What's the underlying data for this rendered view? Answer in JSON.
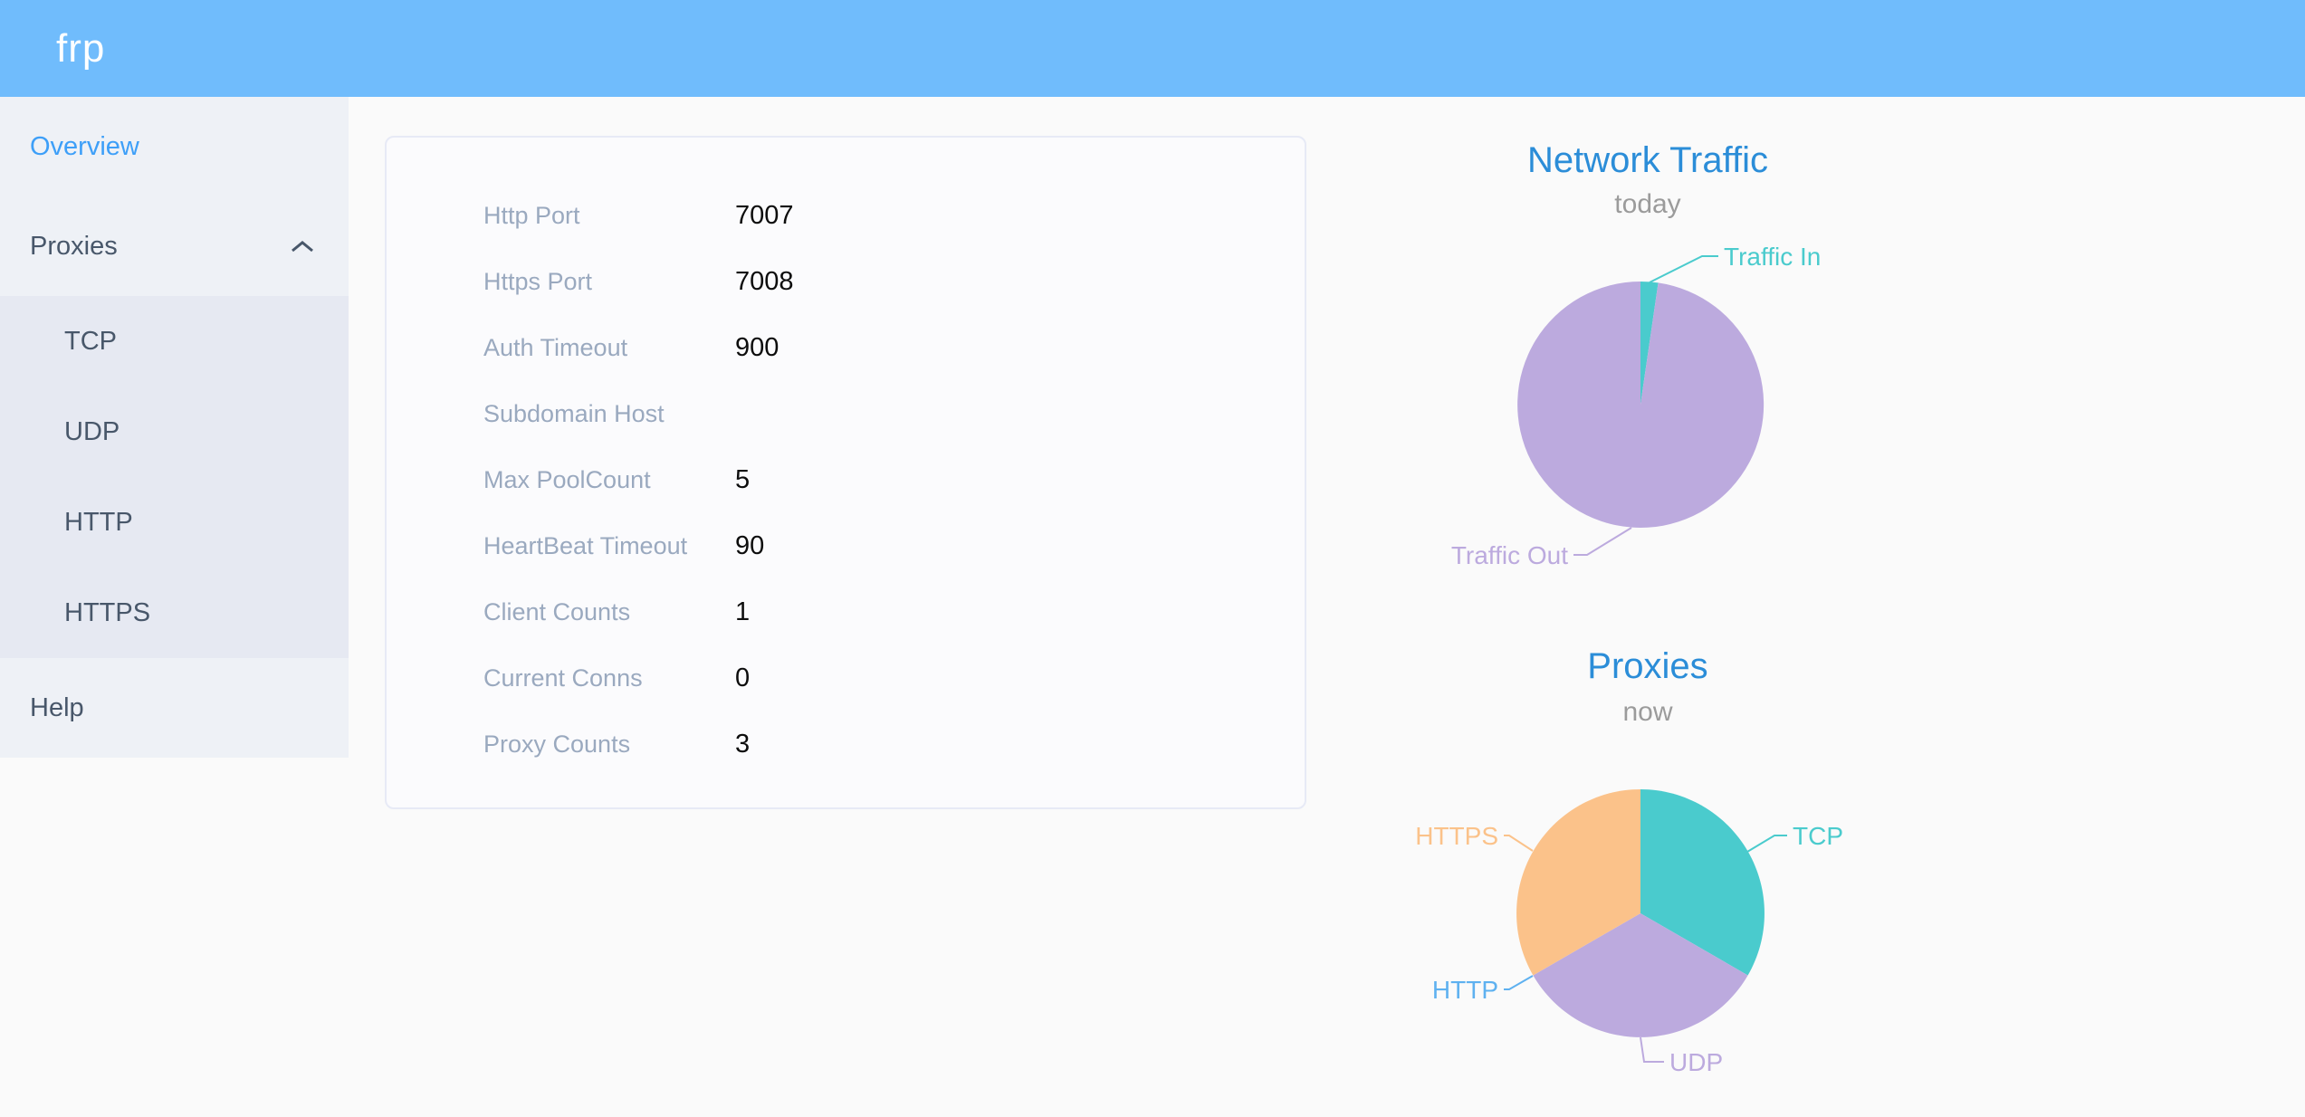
{
  "header": {
    "logo": "frp"
  },
  "sidebar": {
    "overview": "Overview",
    "proxies": {
      "label": "Proxies",
      "expanded": true,
      "children": [
        "TCP",
        "UDP",
        "HTTP",
        "HTTPS"
      ]
    },
    "help": "Help",
    "active_item": "Overview",
    "active_color": "#3d9ff8"
  },
  "overview_table": {
    "rows": [
      {
        "label": "Http Port",
        "value": "7007"
      },
      {
        "label": "Https Port",
        "value": "7008"
      },
      {
        "label": "Auth Timeout",
        "value": "900"
      },
      {
        "label": "Subdomain Host",
        "value": ""
      },
      {
        "label": "Max PoolCount",
        "value": "5"
      },
      {
        "label": "HeartBeat Timeout",
        "value": "90"
      },
      {
        "label": "Client Counts",
        "value": "1"
      },
      {
        "label": "Current Conns",
        "value": "0"
      },
      {
        "label": "Proxy Counts",
        "value": "3"
      }
    ]
  },
  "chart_data": [
    {
      "type": "pie",
      "title": "Network Traffic",
      "subtitle": "today",
      "legend_position": "callout-labels",
      "estimated_percent": true,
      "series": [
        {
          "name": "Traffic In",
          "value": 2.3,
          "color": "#4acbcd"
        },
        {
          "name": "Traffic Out",
          "value": 97.7,
          "color": "#bcaade"
        }
      ]
    },
    {
      "type": "pie",
      "title": "Proxies",
      "subtitle": "now",
      "legend_position": "callout-labels",
      "series": [
        {
          "name": "TCP",
          "value": 1,
          "color": "#4acbcd"
        },
        {
          "name": "UDP",
          "value": 1,
          "color": "#bcaade"
        },
        {
          "name": "HTTP",
          "value": 0,
          "color": "#5eb1f0"
        },
        {
          "name": "HTTPS",
          "value": 1,
          "color": "#fbc28a"
        }
      ]
    }
  ],
  "colors": {
    "header_bg": "#70bcfc",
    "sidebar_bg": "#eef1f6",
    "submenu_bg": "#e6e9f2",
    "sidebar_text": "#48576a",
    "chart_title": "#2b8dd8",
    "table_label": "#9aa9bf"
  }
}
